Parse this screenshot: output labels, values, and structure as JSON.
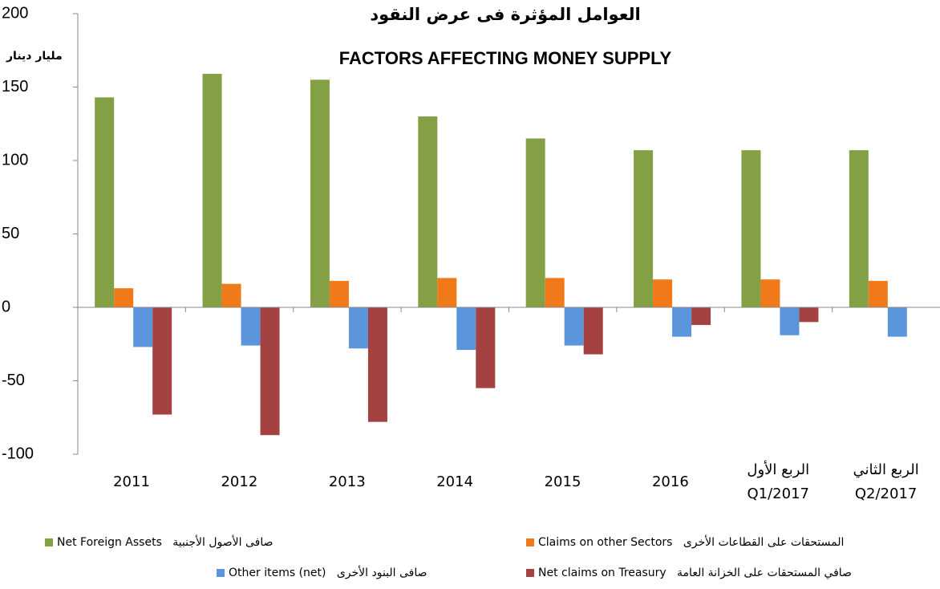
{
  "chart_data": {
    "type": "bar",
    "title": "العوامل المؤثرة فى عرض النقود",
    "subtitle": "FACTORS AFFECTING MONEY SUPPLY",
    "y_label": "مليار دينار",
    "categories": [
      "2011",
      "2012",
      "2013",
      "2014",
      "2015",
      "2016",
      "الربع الأول\nQ1/2017",
      "الربع الثاني\nQ2/2017"
    ],
    "series": [
      {
        "name": "Net Foreign Assets   صافى الأصول الأجنبية",
        "color": "#83a044",
        "values": [
          143,
          159,
          155,
          130,
          115,
          107,
          107,
          107
        ]
      },
      {
        "name": "Claims on other Sectors   المستحقات على القطاعات الأخرى",
        "color": "#f07a1a",
        "values": [
          13,
          16,
          18,
          20,
          20,
          19,
          19,
          18
        ]
      },
      {
        "name": "Other items (net)   صافى البنود الأخرى",
        "color": "#5b96dc",
        "values": [
          -27,
          -26,
          -28,
          -29,
          -26,
          -20,
          -19,
          -20
        ]
      },
      {
        "name": "Net claims on Treasury   صافي المستحقات على الخزانة العامة",
        "color": "#a44242",
        "values": [
          -73,
          -87,
          -78,
          -55,
          -32,
          -12,
          -10,
          null
        ]
      }
    ],
    "ylim": [
      -100,
      200
    ],
    "yticks": [
      -100,
      -50,
      0,
      50,
      100,
      150,
      200
    ]
  }
}
